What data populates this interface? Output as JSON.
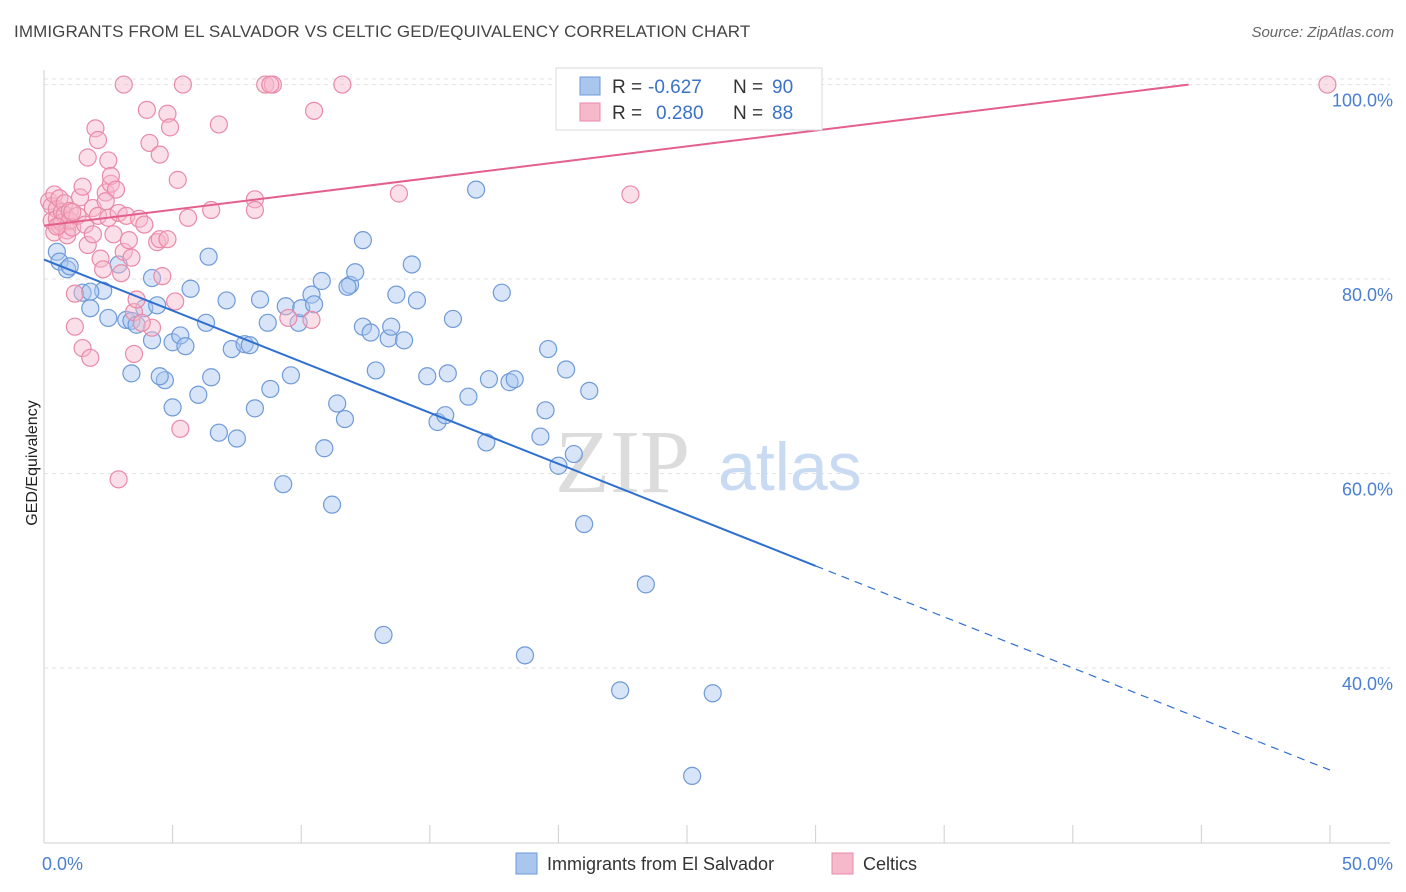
{
  "header": {
    "title": "IMMIGRANTS FROM EL SALVADOR VS CELTIC GED/EQUIVALENCY CORRELATION CHART",
    "source": "Source: ZipAtlas.com"
  },
  "legend_box": {
    "rows": [
      {
        "r_label": "R =",
        "r_value": "-0.627",
        "n_label": "N =",
        "n_value": "90"
      },
      {
        "r_label": "R =",
        "r_value": "0.280",
        "n_label": "N =",
        "n_value": "88"
      }
    ]
  },
  "watermark": {
    "zip": "ZIP",
    "atlas": "atlas"
  },
  "colors": {
    "blue_fill": "#a9c6ef",
    "blue_stroke": "#6f9ad8",
    "blue_line": "#2f6fd0",
    "pink_fill": "#f6b8cb",
    "pink_stroke": "#e98aa8",
    "pink_line": "#e4608c",
    "tick_text": "#4a7fd1",
    "grid": "#e2e2e2"
  },
  "chart_data": {
    "type": "scatter",
    "title": "IMMIGRANTS FROM EL SALVADOR VS CELTIC GED/EQUIVALENCY CORRELATION CHART",
    "xlabel": "",
    "ylabel": "GED/Equivalency",
    "xlim": [
      0,
      50
    ],
    "ylim": [
      22,
      101.5
    ],
    "x_tick_labels": [
      "0.0%",
      "50.0%"
    ],
    "y_tick_values": [
      40,
      60,
      80,
      100
    ],
    "y_tick_labels": [
      "40.0%",
      "60.0%",
      "80.0%",
      "100.0%"
    ],
    "grid": true,
    "legend_position": "bottom-center",
    "series": [
      {
        "name": "Immigrants from El Salvador",
        "color": "#6f9ad8",
        "trend": {
          "x0": 0,
          "y0": 82.0,
          "x1": 30,
          "y1": 50.5,
          "dashed_to_x": 50,
          "dashed_to_y": 29.5
        },
        "points": [
          [
            0.5,
            82.8
          ],
          [
            0.6,
            81.8
          ],
          [
            0.9,
            81.0
          ],
          [
            1.0,
            81.3
          ],
          [
            1.5,
            78.6
          ],
          [
            1.8,
            77.0
          ],
          [
            2.3,
            78.8
          ],
          [
            2.5,
            76.0
          ],
          [
            2.9,
            81.5
          ],
          [
            3.2,
            75.8
          ],
          [
            3.4,
            75.7
          ],
          [
            3.4,
            70.3
          ],
          [
            3.6,
            75.3
          ],
          [
            3.9,
            77.0
          ],
          [
            4.2,
            73.7
          ],
          [
            4.2,
            80.1
          ],
          [
            4.4,
            77.3
          ],
          [
            4.7,
            69.6
          ],
          [
            5.0,
            66.8
          ],
          [
            5.0,
            73.5
          ],
          [
            5.3,
            74.2
          ],
          [
            5.5,
            73.1
          ],
          [
            5.7,
            79.0
          ],
          [
            6.0,
            68.1
          ],
          [
            6.3,
            75.5
          ],
          [
            6.4,
            82.3
          ],
          [
            6.5,
            69.9
          ],
          [
            6.8,
            64.2
          ],
          [
            7.1,
            77.8
          ],
          [
            7.3,
            72.8
          ],
          [
            7.5,
            63.6
          ],
          [
            7.8,
            73.3
          ],
          [
            8.0,
            73.2
          ],
          [
            8.2,
            66.7
          ],
          [
            8.4,
            77.9
          ],
          [
            8.7,
            75.5
          ],
          [
            8.8,
            68.7
          ],
          [
            9.3,
            58.9
          ],
          [
            9.4,
            77.2
          ],
          [
            9.6,
            70.1
          ],
          [
            9.9,
            75.5
          ],
          [
            10.0,
            77.0
          ],
          [
            10.4,
            78.4
          ],
          [
            10.5,
            77.4
          ],
          [
            10.8,
            79.8
          ],
          [
            10.9,
            62.6
          ],
          [
            11.2,
            56.8
          ],
          [
            11.4,
            67.2
          ],
          [
            11.7,
            65.6
          ],
          [
            11.9,
            79.4
          ],
          [
            12.1,
            80.7
          ],
          [
            12.4,
            84.0
          ],
          [
            12.4,
            75.1
          ],
          [
            12.7,
            74.5
          ],
          [
            12.9,
            70.6
          ],
          [
            13.2,
            43.4
          ],
          [
            13.4,
            73.9
          ],
          [
            13.5,
            75.1
          ],
          [
            13.7,
            78.4
          ],
          [
            14.0,
            73.7
          ],
          [
            14.3,
            81.5
          ],
          [
            14.5,
            77.8
          ],
          [
            14.9,
            70.0
          ],
          [
            15.3,
            65.3
          ],
          [
            15.6,
            66.0
          ],
          [
            15.7,
            70.3
          ],
          [
            15.9,
            75.9
          ],
          [
            16.5,
            67.9
          ],
          [
            16.8,
            89.2
          ],
          [
            17.2,
            63.2
          ],
          [
            17.3,
            69.7
          ],
          [
            17.8,
            78.6
          ],
          [
            18.1,
            69.4
          ],
          [
            18.3,
            69.7
          ],
          [
            18.7,
            41.3
          ],
          [
            19.3,
            63.8
          ],
          [
            19.5,
            66.5
          ],
          [
            19.6,
            72.8
          ],
          [
            20.0,
            60.8
          ],
          [
            20.3,
            70.7
          ],
          [
            20.6,
            62.0
          ],
          [
            21.0,
            54.8
          ],
          [
            21.2,
            68.5
          ],
          [
            22.4,
            37.7
          ],
          [
            23.4,
            48.6
          ],
          [
            25.2,
            28.9
          ],
          [
            26.0,
            37.4
          ],
          [
            4.5,
            70.0
          ],
          [
            1.8,
            78.7
          ],
          [
            11.8,
            79.2
          ]
        ]
      },
      {
        "name": "Celtics",
        "color": "#e98aa8",
        "trend": {
          "x0": 0,
          "y0": 85.5,
          "x1": 44.5,
          "y1": 100.0
        },
        "points": [
          [
            0.2,
            88.0
          ],
          [
            0.3,
            87.5
          ],
          [
            0.3,
            86.0
          ],
          [
            0.4,
            88.7
          ],
          [
            0.4,
            84.8
          ],
          [
            0.5,
            87.2
          ],
          [
            0.5,
            86.2
          ],
          [
            0.6,
            88.3
          ],
          [
            0.6,
            85.5
          ],
          [
            0.7,
            86.9
          ],
          [
            0.7,
            85.8
          ],
          [
            0.8,
            87.8
          ],
          [
            0.8,
            86.6
          ],
          [
            0.9,
            85.0
          ],
          [
            0.9,
            84.5
          ],
          [
            1.0,
            87.0
          ],
          [
            1.0,
            86.0
          ],
          [
            1.1,
            85.3
          ],
          [
            1.2,
            78.5
          ],
          [
            1.2,
            75.1
          ],
          [
            1.3,
            86.5
          ],
          [
            1.4,
            88.4
          ],
          [
            1.5,
            89.5
          ],
          [
            1.5,
            72.9
          ],
          [
            1.6,
            85.6
          ],
          [
            1.7,
            83.5
          ],
          [
            1.7,
            92.5
          ],
          [
            1.8,
            71.9
          ],
          [
            1.9,
            87.3
          ],
          [
            1.9,
            84.6
          ],
          [
            2.0,
            95.5
          ],
          [
            2.1,
            86.5
          ],
          [
            2.1,
            94.3
          ],
          [
            2.2,
            82.1
          ],
          [
            2.3,
            81.0
          ],
          [
            2.4,
            88.9
          ],
          [
            2.5,
            92.2
          ],
          [
            2.5,
            86.3
          ],
          [
            2.6,
            89.8
          ],
          [
            2.6,
            90.6
          ],
          [
            2.7,
            84.6
          ],
          [
            2.8,
            89.2
          ],
          [
            2.9,
            86.8
          ],
          [
            2.9,
            59.4
          ],
          [
            3.0,
            80.6
          ],
          [
            3.1,
            100.0
          ],
          [
            3.1,
            82.8
          ],
          [
            3.2,
            86.5
          ],
          [
            3.3,
            84.0
          ],
          [
            3.4,
            82.2
          ],
          [
            3.5,
            72.3
          ],
          [
            3.5,
            76.6
          ],
          [
            3.6,
            77.9
          ],
          [
            3.7,
            86.2
          ],
          [
            3.9,
            85.6
          ],
          [
            4.0,
            97.4
          ],
          [
            4.1,
            94.0
          ],
          [
            4.2,
            75.0
          ],
          [
            4.4,
            83.8
          ],
          [
            4.5,
            84.1
          ],
          [
            4.5,
            92.8
          ],
          [
            4.6,
            80.3
          ],
          [
            4.8,
            97.0
          ],
          [
            4.8,
            84.1
          ],
          [
            4.9,
            95.6
          ],
          [
            5.1,
            77.7
          ],
          [
            5.2,
            90.2
          ],
          [
            5.3,
            64.6
          ],
          [
            5.4,
            100.0
          ],
          [
            5.6,
            86.3
          ],
          [
            6.5,
            87.1
          ],
          [
            6.8,
            95.9
          ],
          [
            8.2,
            88.2
          ],
          [
            8.2,
            87.1
          ],
          [
            8.6,
            100.0
          ],
          [
            8.9,
            100.0
          ],
          [
            9.5,
            76.0
          ],
          [
            10.4,
            75.8
          ],
          [
            10.5,
            97.3
          ],
          [
            11.6,
            100.0
          ],
          [
            13.8,
            88.8
          ],
          [
            22.8,
            88.7
          ],
          [
            49.9,
            100.0
          ],
          [
            8.8,
            100.0
          ],
          [
            2.4,
            88.0
          ],
          [
            1.1,
            86.9
          ],
          [
            0.5,
            85.4
          ],
          [
            3.8,
            75.5
          ]
        ]
      }
    ]
  },
  "bottom_legend": {
    "items": [
      {
        "label": "Immigrants from El Salvador"
      },
      {
        "label": "Celtics"
      }
    ]
  }
}
